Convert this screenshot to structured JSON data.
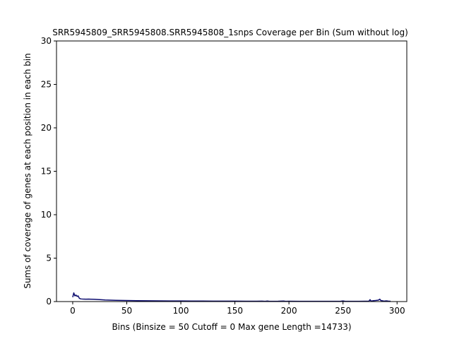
{
  "chart_data": {
    "type": "line",
    "title": "SRR5945809_SRR5945808.SRR5945808_1snps Coverage per Bin (Sum without log)",
    "xlabel": "Bins  (Binsize = 50 Cutoff = 0 Max gene Length =14733)",
    "ylabel": "Sums of coverage of genes at each position in each bin",
    "xlim": [
      -15,
      309
    ],
    "ylim": [
      0,
      30
    ],
    "x_ticks": [
      0,
      50,
      100,
      150,
      200,
      250,
      300
    ],
    "x_tick_labels": [
      "0",
      "50",
      "100",
      "150",
      "200",
      "250",
      "300"
    ],
    "y_ticks": [
      0,
      5,
      10,
      15,
      20,
      25,
      30
    ],
    "y_tick_labels": [
      "0",
      "5",
      "10",
      "15",
      "20",
      "25",
      "30"
    ],
    "grid": false,
    "line_color": "#0b0b6e",
    "series": [
      {
        "x": [
          0,
          1,
          2,
          3,
          4,
          5,
          6,
          7,
          8,
          10,
          12,
          15,
          20,
          25,
          30,
          40,
          50,
          60,
          70,
          80,
          90,
          100,
          110,
          120,
          130,
          140,
          150,
          160,
          170,
          175,
          178,
          180,
          182,
          190,
          195,
          197,
          200,
          210,
          220,
          230,
          240,
          248,
          250,
          252,
          260,
          270,
          274,
          275,
          276,
          278,
          280,
          282,
          283,
          284,
          285,
          286,
          288,
          290,
          292,
          294
        ],
        "y": [
          0.5,
          1.0,
          0.65,
          0.75,
          0.6,
          0.65,
          0.4,
          0.32,
          0.3,
          0.28,
          0.27,
          0.28,
          0.26,
          0.22,
          0.18,
          0.14,
          0.12,
          0.1,
          0.09,
          0.08,
          0.07,
          0.07,
          0.06,
          0.06,
          0.05,
          0.05,
          0.05,
          0.04,
          0.04,
          0.05,
          0.03,
          0.06,
          0.03,
          0.04,
          0.06,
          0.03,
          0.04,
          0.03,
          0.03,
          0.03,
          0.03,
          0.04,
          0.07,
          0.03,
          0.03,
          0.04,
          0.05,
          0.22,
          0.05,
          0.1,
          0.12,
          0.15,
          0.18,
          0.28,
          0.12,
          0.1,
          0.05,
          0.08,
          0.05,
          0.04
        ]
      }
    ]
  }
}
